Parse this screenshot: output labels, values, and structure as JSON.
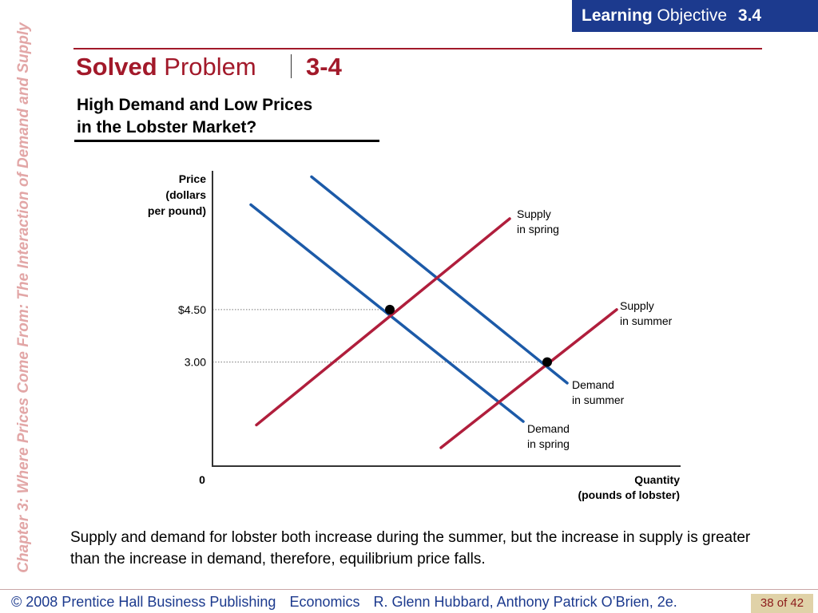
{
  "sidebar": {
    "title": "Chapter 3: Where Prices Come From: The Interaction of Demand and Supply"
  },
  "header": {
    "objective_bold": "Learning",
    "objective_rest": "Objective",
    "objective_number": "3.4",
    "solved_bold": "Solved",
    "solved_rest": "Problem",
    "problem_number": "3-4",
    "subtitle_line1": "High Demand and Low Prices",
    "subtitle_line2": "in the Lobster Market?"
  },
  "chart_data": {
    "type": "line",
    "ylabel": [
      "Price",
      "(dollars",
      "per pound)"
    ],
    "xlabel": [
      "Quantity",
      "(pounds of lobster)"
    ],
    "origin_label": "0",
    "yticks": [
      {
        "label": "$4.50",
        "value": 4.5
      },
      {
        "label": "3.00",
        "value": 3.0
      }
    ],
    "ylim": [
      0,
      8.25
    ],
    "xlim": [
      0,
      585
    ],
    "grid": false,
    "series": [
      {
        "name": "Demand in spring",
        "label_lines": [
          "Demand",
          "in spring"
        ],
        "color": "#1c5aa8",
        "points": [
          [
            48,
            7.5
          ],
          [
            389,
            1.3
          ]
        ]
      },
      {
        "name": "Demand in summer",
        "label_lines": [
          "Demand",
          "in summer"
        ],
        "color": "#1c5aa8",
        "points": [
          [
            124,
            8.3
          ],
          [
            444,
            2.4
          ]
        ]
      },
      {
        "name": "Supply in spring",
        "label_lines": [
          "Supply",
          "in spring"
        ],
        "color": "#b01e3c",
        "points": [
          [
            55,
            1.2
          ],
          [
            372,
            7.1
          ]
        ]
      },
      {
        "name": "Supply in summer",
        "label_lines": [
          "Supply",
          "in summer"
        ],
        "color": "#b01e3c",
        "points": [
          [
            286,
            0.55
          ],
          [
            506,
            4.5
          ]
        ]
      }
    ],
    "equilibria": [
      {
        "x": 222,
        "y": 4.5
      },
      {
        "x": 419,
        "y": 3.0
      }
    ]
  },
  "caption": "Supply and demand for lobster both increase during the summer, but the increase in supply is greater than the increase in demand, therefore, equilibrium price falls.",
  "footer": {
    "copyright": "© 2008 Prentice Hall Business Publishing",
    "book": "Economics",
    "authors": "R. Glenn Hubbard, Anthony Patrick O’Brien, 2e.",
    "page": "38 of 42"
  }
}
